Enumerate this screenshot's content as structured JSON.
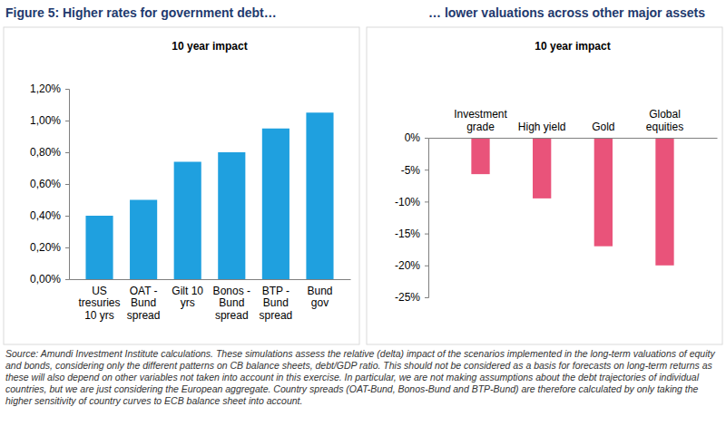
{
  "chart_data": [
    {
      "type": "bar",
      "title": "Figure 5: Higher rates for government debt…",
      "subtitle": "10 year impact",
      "categories": [
        "US tresuries 10 yrs",
        "OAT - Bund spread",
        "Gilt 10 yrs",
        "Bonos - Bund spread",
        "BTP - Bund spread",
        "Bund gov"
      ],
      "values": [
        0.4,
        0.5,
        0.74,
        0.8,
        0.95,
        1.05
      ],
      "color": "#1fa0df",
      "ylim": [
        0,
        1.2
      ],
      "yticks": [
        {
          "value": 0,
          "label": "0,00%"
        },
        {
          "value": 0.2,
          "label": "0,20%"
        },
        {
          "value": 0.4,
          "label": "0,40%"
        },
        {
          "value": 0.6,
          "label": "0,60%"
        },
        {
          "value": 0.8,
          "label": "0,80%"
        },
        {
          "value": 1.0,
          "label": "1,00%"
        },
        {
          "value": 1.2,
          "label": "1,20%"
        }
      ],
      "grid": false
    },
    {
      "type": "bar",
      "title": "… lower valuations across other major assets",
      "subtitle": "10 year impact",
      "categories": [
        "Investment grade",
        "High yield",
        "Gold",
        "Global equities"
      ],
      "values": [
        -5.7,
        -9.5,
        -17,
        -20
      ],
      "color": "#e9537a",
      "ylim": [
        -25,
        0
      ],
      "yticks": [
        {
          "value": 0,
          "label": "0%"
        },
        {
          "value": -5,
          "label": "-5%"
        },
        {
          "value": -10,
          "label": "-10%"
        },
        {
          "value": -15,
          "label": "-15%"
        },
        {
          "value": -20,
          "label": "-20%"
        },
        {
          "value": -25,
          "label": "-25%"
        }
      ],
      "grid": false
    }
  ],
  "source": "Source: Amundi Investment Institute calculations. These simulations assess the relative (delta) impact of the scenarios implemented in the long-term valuations of equity and bonds, considering only the different patterns on CB balance sheets, debt/GDP ratio. This should not be considered as a basis for forecasts on long-term returns as these will also depend on other variables not taken into account in this exercise. In particular, we are not making assumptions about the debt trajectories of individual countries, but we are just considering the European aggregate. Country spreads (OAT-Bund, Bonos-Bund and BTP-Bund) are therefore calculated by only taking the higher sensitivity of country curves to ECB balance sheet into account."
}
